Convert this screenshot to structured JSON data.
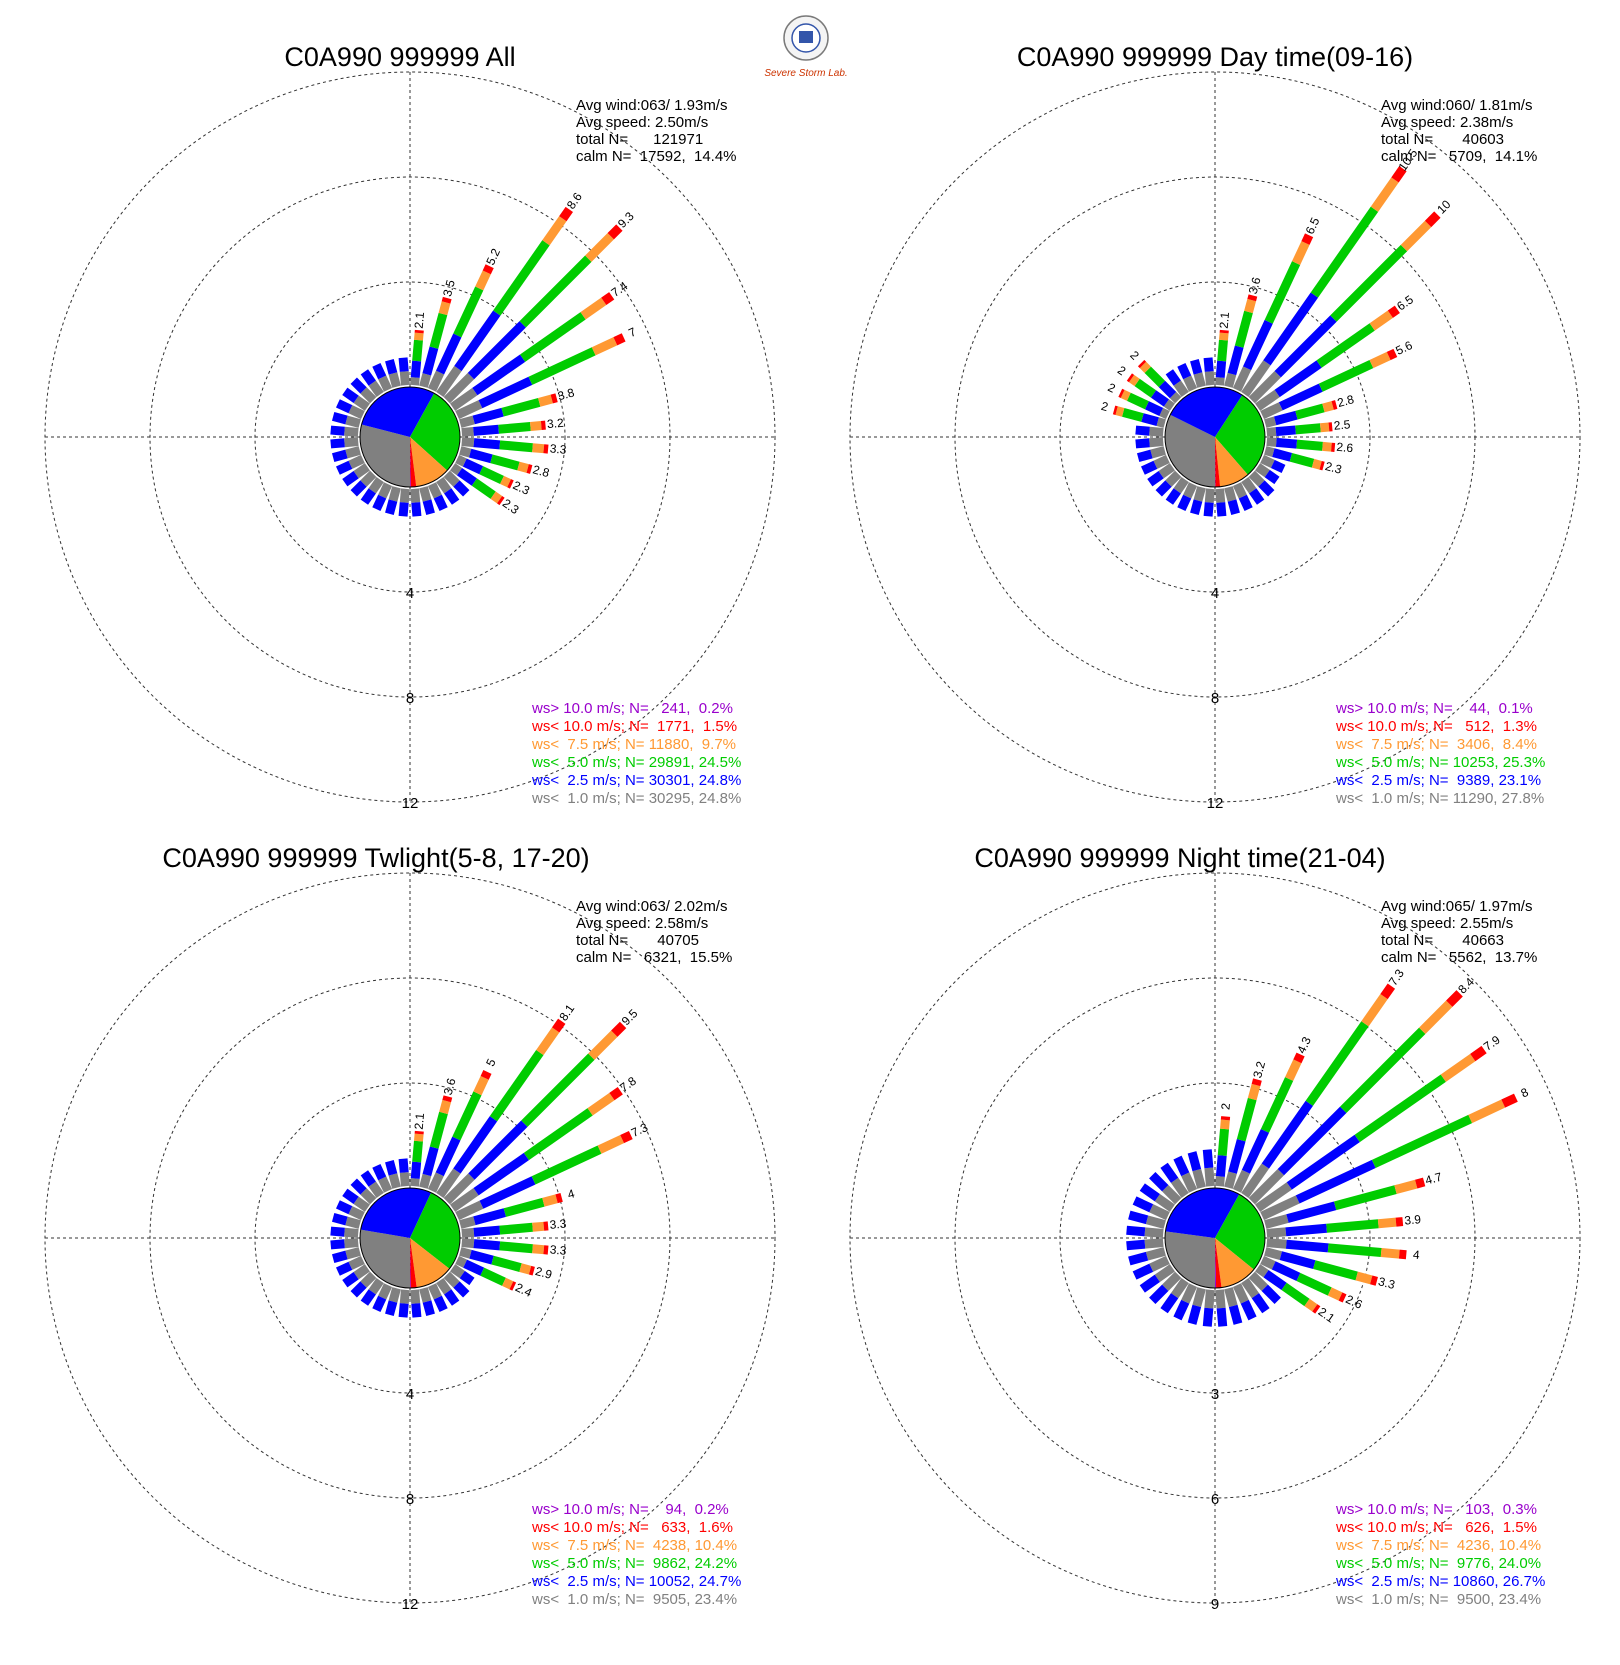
{
  "logo": {
    "text": "Severe Storm Lab."
  },
  "legend_colors": {
    "gt10": "#9900cc",
    "lt10": "#ff0000",
    "lt75": "#ff9933",
    "lt50": "#00cc00",
    "lt25": "#0000ff",
    "lt10m": "#808080"
  },
  "chart_data": [
    {
      "type": "windrose",
      "title": "C0A990 999999 All",
      "ring_labels": [
        "4",
        "8",
        "12"
      ],
      "stats": [
        "Avg wind:063/ 1.93m/s",
        "Avg speed: 2.50m/s",
        "total N=      121971",
        "calm N=  17592,  14.4%"
      ],
      "legend": [
        "ws> 10.0 m/s; N=   241,  0.2%",
        "ws< 10.0 m/s; N=  1771,  1.5%",
        "ws<  7.5 m/s; N= 11880,  9.7%",
        "ws<  5.0 m/s; N= 29891, 24.5%",
        "ws<  2.5 m/s; N= 30301, 24.8%",
        "ws<  1.0 m/s; N= 30295, 24.8%"
      ],
      "calm_pie": [
        24.8,
        24.8,
        24.5,
        9.7,
        1.5,
        0.2
      ],
      "spokes": [
        {
          "dir": 5,
          "value": 2.1
        },
        {
          "dir": 15,
          "value": 3.5
        },
        {
          "dir": 25,
          "value": 5.2
        },
        {
          "dir": 35,
          "value": 8.6
        },
        {
          "dir": 45,
          "value": 9.3
        },
        {
          "dir": 55,
          "value": 7.4
        },
        {
          "dir": 65,
          "value": 7.0
        },
        {
          "dir": 75,
          "value": 3.8
        },
        {
          "dir": 85,
          "value": 3.2
        },
        {
          "dir": 95,
          "value": 3.3
        },
        {
          "dir": 105,
          "value": 2.8
        },
        {
          "dir": 115,
          "value": 2.3
        },
        {
          "dir": 125,
          "value": 2.3
        }
      ]
    },
    {
      "type": "windrose",
      "title": "C0A990 999999 Day time(09-16)",
      "ring_labels": [
        "4",
        "8",
        "12"
      ],
      "stats": [
        "Avg wind:060/ 1.81m/s",
        "Avg speed: 2.38m/s",
        "total N=       40603",
        "calm N=   5709,  14.1%"
      ],
      "legend": [
        "ws> 10.0 m/s; N=    44,  0.1%",
        "ws< 10.0 m/s; N=   512,  1.3%",
        "ws<  7.5 m/s; N=  3406,  8.4%",
        "ws<  5.0 m/s; N= 10253, 25.3%",
        "ws<  2.5 m/s; N=  9389, 23.1%",
        "ws<  1.0 m/s; N= 11290, 27.8%"
      ],
      "calm_pie": [
        27.8,
        23.1,
        25.3,
        8.4,
        1.3,
        0.1
      ],
      "spokes": [
        {
          "dir": 5,
          "value": 2.1
        },
        {
          "dir": 15,
          "value": 3.6
        },
        {
          "dir": 25,
          "value": 6.5
        },
        {
          "dir": 35,
          "value": 10.5
        },
        {
          "dir": 45,
          "value": 10.0
        },
        {
          "dir": 55,
          "value": 6.5
        },
        {
          "dir": 65,
          "value": 5.6
        },
        {
          "dir": 75,
          "value": 2.8
        },
        {
          "dir": 85,
          "value": 2.5
        },
        {
          "dir": 95,
          "value": 2.6
        },
        {
          "dir": 105,
          "value": 2.3
        },
        {
          "dir": 285,
          "value": 2
        },
        {
          "dir": 295,
          "value": 2
        },
        {
          "dir": 305,
          "value": 2
        },
        {
          "dir": 315,
          "value": 2
        }
      ]
    },
    {
      "type": "windrose",
      "title": "C0A990 999999 Twlight(5-8, 17-20)",
      "ring_labels": [
        "4",
        "8",
        "12"
      ],
      "stats": [
        "Avg wind:063/ 2.02m/s",
        "Avg speed: 2.58m/s",
        "total N=       40705",
        "calm N=   6321,  15.5%"
      ],
      "legend": [
        "ws> 10.0 m/s; N=    94,  0.2%",
        "ws< 10.0 m/s; N=   633,  1.6%",
        "ws<  7.5 m/s; N=  4238, 10.4%",
        "ws<  5.0 m/s; N=  9862, 24.2%",
        "ws<  2.5 m/s; N= 10052, 24.7%",
        "ws<  1.0 m/s; N=  9505, 23.4%"
      ],
      "calm_pie": [
        23.4,
        24.7,
        24.2,
        10.4,
        1.6,
        0.2
      ],
      "spokes": [
        {
          "dir": 5,
          "value": 2.1
        },
        {
          "dir": 15,
          "value": 3.6
        },
        {
          "dir": 25,
          "value": 5.0
        },
        {
          "dir": 35,
          "value": 8.1
        },
        {
          "dir": 45,
          "value": 9.5
        },
        {
          "dir": 55,
          "value": 7.8
        },
        {
          "dir": 65,
          "value": 7.3
        },
        {
          "dir": 75,
          "value": 4.0
        },
        {
          "dir": 85,
          "value": 3.3
        },
        {
          "dir": 95,
          "value": 3.3
        },
        {
          "dir": 105,
          "value": 2.9
        },
        {
          "dir": 115,
          "value": 2.4
        }
      ]
    },
    {
      "type": "windrose",
      "title": "C0A990 999999 Night time(21-04)",
      "ring_labels": [
        "3",
        "6",
        "9"
      ],
      "stats": [
        "Avg wind:065/ 1.97m/s",
        "Avg speed: 2.55m/s",
        "total N=       40663",
        "calm N=   5562,  13.7%"
      ],
      "legend": [
        "ws> 10.0 m/s; N=   103,  0.3%",
        "ws< 10.0 m/s; N=   626,  1.5%",
        "ws<  7.5 m/s; N=  4236, 10.4%",
        "ws<  5.0 m/s; N=  9776, 24.0%",
        "ws<  2.5 m/s; N= 10860, 26.7%",
        "ws<  1.0 m/s; N=  9500, 23.4%"
      ],
      "calm_pie": [
        23.4,
        26.7,
        24.0,
        10.4,
        1.5,
        0.3
      ],
      "spokes": [
        {
          "dir": 5,
          "value": 2.0
        },
        {
          "dir": 15,
          "value": 3.2
        },
        {
          "dir": 25,
          "value": 4.3
        },
        {
          "dir": 35,
          "value": 7.3
        },
        {
          "dir": 45,
          "value": 8.4
        },
        {
          "dir": 55,
          "value": 7.9
        },
        {
          "dir": 65,
          "value": 8.0
        },
        {
          "dir": 75,
          "value": 4.7
        },
        {
          "dir": 85,
          "value": 3.9
        },
        {
          "dir": 95,
          "value": 4.0
        },
        {
          "dir": 105,
          "value": 3.3
        },
        {
          "dir": 115,
          "value": 2.6
        },
        {
          "dir": 125,
          "value": 2.1
        }
      ]
    }
  ]
}
